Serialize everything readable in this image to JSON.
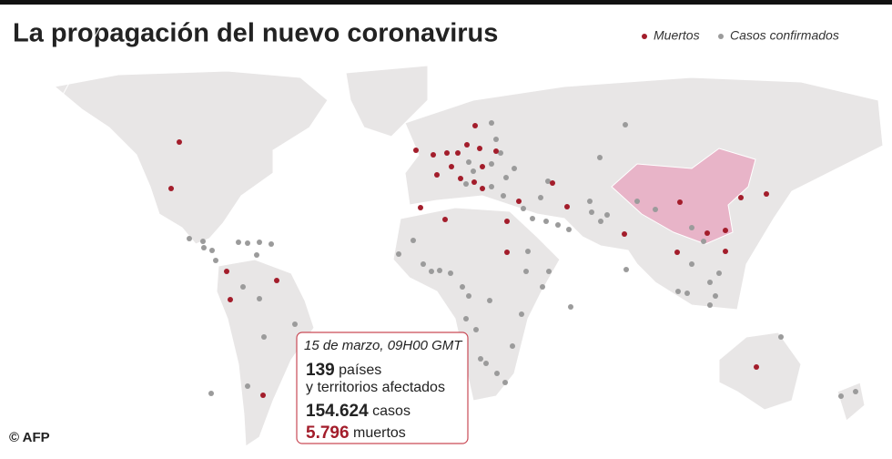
{
  "header": {
    "title": "La propagación del nuevo coronavirus"
  },
  "legend": [
    {
      "label": "Muertos",
      "color": "#a31d2b"
    },
    {
      "label": "Casos confirmados",
      "color": "#9b9b9b"
    }
  ],
  "info_box": {
    "date": "15 de marzo, 09H00 GMT",
    "countries": "139",
    "countries_label_1": "países",
    "countries_label_2": "y territorios afectados",
    "cases": "154.624",
    "cases_label": "casos",
    "deaths": "5.796",
    "deaths_label": "muertos"
  },
  "credit": "© AFP"
}
